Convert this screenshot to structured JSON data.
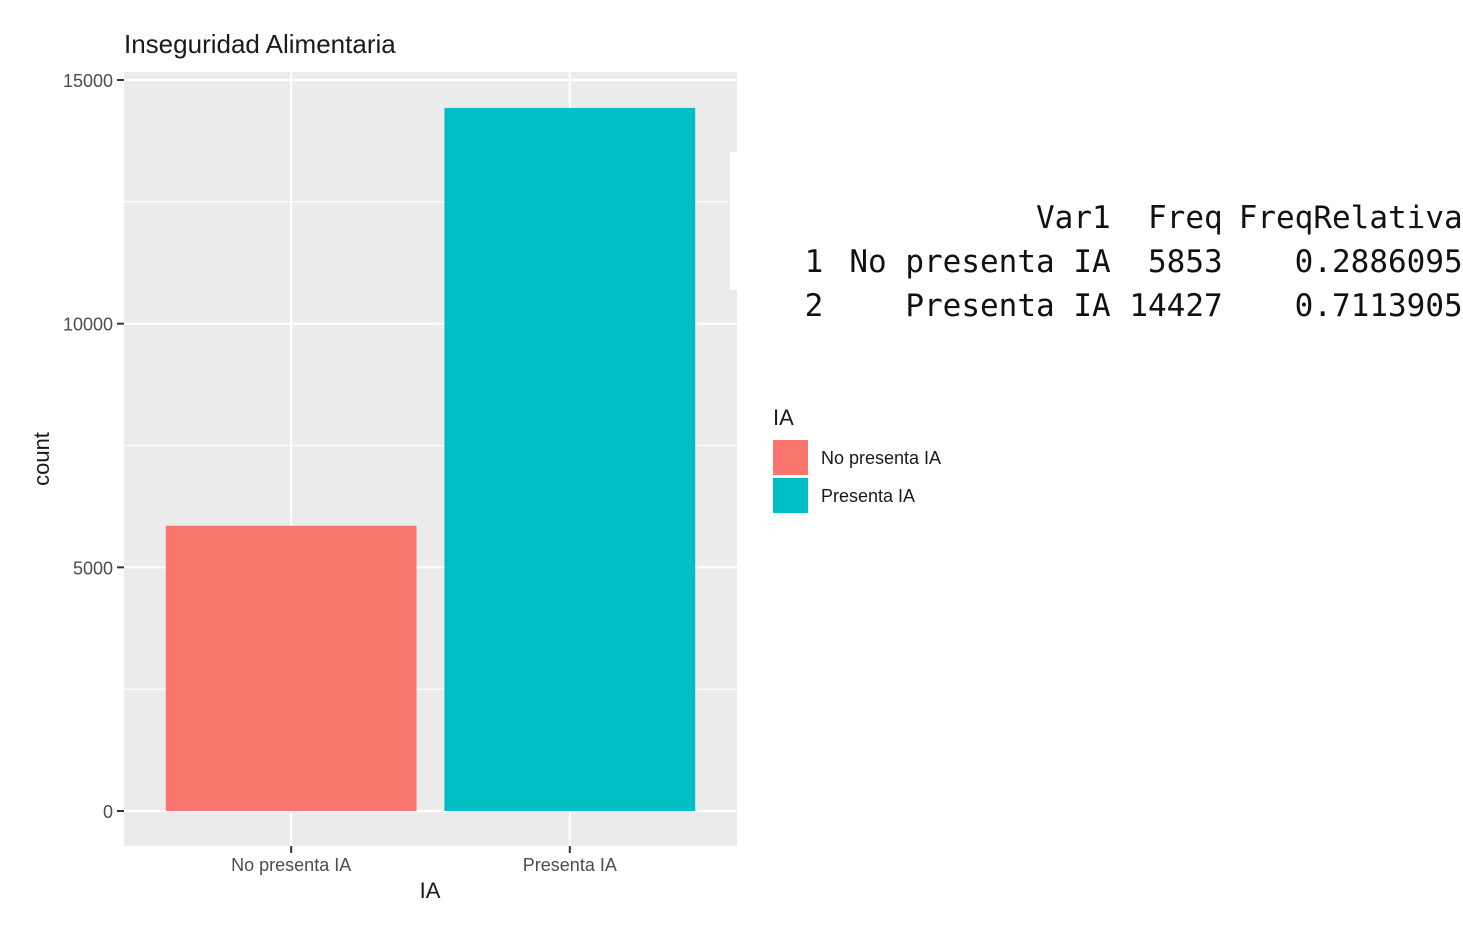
{
  "chart_data": {
    "type": "bar",
    "title": "Inseguridad Alimentaria",
    "xlabel": "IA",
    "ylabel": "count",
    "categories": [
      "No presenta IA",
      "Presenta IA"
    ],
    "values": [
      5853,
      14427
    ],
    "colors": [
      "#F8766D",
      "#00BFC4"
    ],
    "ylim": [
      0,
      15700
    ],
    "yticks": [
      0,
      5000,
      10000,
      15000
    ],
    "grid": true,
    "background": "#EBEBEB",
    "legend": {
      "title": "IA",
      "placement": "right",
      "entries": [
        {
          "label": "No presenta IA",
          "color": "#F8766D"
        },
        {
          "label": "Presenta IA",
          "color": "#00BFC4"
        }
      ]
    }
  },
  "console_table": {
    "headers": [
      "",
      "Var1",
      "Freq",
      "FreqRelativa"
    ],
    "rows": [
      {
        "index": "1",
        "var1": "No presenta IA",
        "freq": "5853",
        "freq_rel": "0.2886095"
      },
      {
        "index": "2",
        "var1": "Presenta IA",
        "freq": "14427",
        "freq_rel": "0.7113905"
      }
    ]
  }
}
